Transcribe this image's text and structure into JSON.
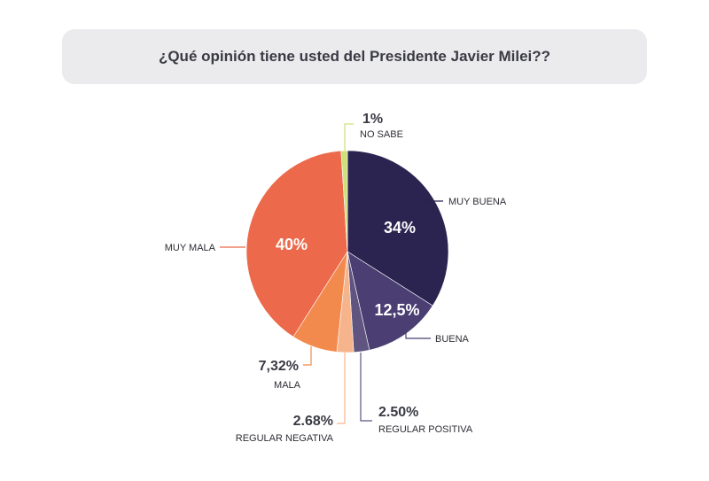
{
  "title": "¿Qué opinión tiene usted del Presidente Javier Milei??",
  "chart_data": {
    "type": "pie",
    "title": "¿Qué opinión tiene usted del Presidente Javier Milei??",
    "slices": [
      {
        "label": "MUY BUENA",
        "value": 34,
        "display": "34%",
        "color": "#2b2350"
      },
      {
        "label": "BUENA",
        "value": 12.5,
        "display": "12,5%",
        "color": "#4a3e72"
      },
      {
        "label": "REGULAR POSITIVA",
        "value": 2.5,
        "display": "2.50%",
        "color": "#5f5580"
      },
      {
        "label": "REGULAR NEGATIVA",
        "value": 2.68,
        "display": "2.68%",
        "color": "#f6b48c"
      },
      {
        "label": "MALA",
        "value": 7.32,
        "display": "7,32%",
        "color": "#f28a4e"
      },
      {
        "label": "MUY MALA",
        "value": 40,
        "display": "40%",
        "color": "#ec6a4b"
      },
      {
        "label": "NO SABE",
        "value": 1,
        "display": "1%",
        "color": "#cfe07a"
      }
    ]
  }
}
